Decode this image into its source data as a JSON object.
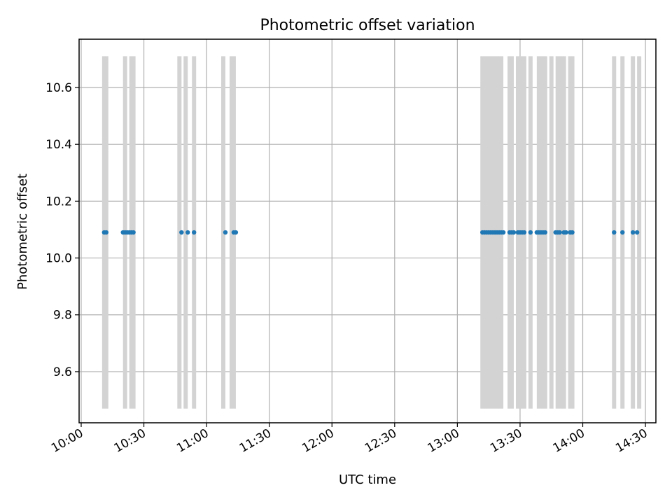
{
  "chart_data": {
    "type": "scatter",
    "title": "Photometric offset variation",
    "xlabel": "UTC time",
    "ylabel": "Photometric offset",
    "x_axis": {
      "kind": "time",
      "range": [
        "09:59",
        "14:35"
      ],
      "ticks": [
        "10:00",
        "10:30",
        "11:00",
        "11:30",
        "12:00",
        "12:30",
        "13:00",
        "13:30",
        "14:00",
        "14:30"
      ]
    },
    "y_axis": {
      "range": [
        9.42,
        10.77
      ],
      "ticks": [
        "9.6",
        "9.8",
        "10.0",
        "10.2",
        "10.4",
        "10.6"
      ]
    },
    "grid": true,
    "series": [
      {
        "color": "#1f77b4",
        "marker": "circle",
        "y_value": 10.09,
        "times": [
          "10:11",
          "10:12",
          "10:20",
          "10:21",
          "10:22",
          "10:23",
          "10:24",
          "10:25",
          "10:48",
          "10:51",
          "10:54",
          "11:09",
          "11:13",
          "11:14",
          "13:12",
          "13:13",
          "13:14",
          "13:15",
          "13:16",
          "13:17",
          "13:18",
          "13:19",
          "13:20",
          "13:21",
          "13:22",
          "13:25",
          "13:26",
          "13:27",
          "13:29",
          "13:30",
          "13:31",
          "13:32",
          "13:35",
          "13:38",
          "13:39",
          "13:40",
          "13:41",
          "13:42",
          "13:47",
          "13:48",
          "13:49",
          "13:51",
          "13:52",
          "13:54",
          "13:55",
          "14:15",
          "14:19",
          "14:24",
          "14:26"
        ]
      }
    ],
    "shaded_intervals": {
      "color": "#d3d3d3",
      "y_range": [
        9.47,
        10.71
      ],
      "intervals": [
        [
          "10:10",
          "10:13"
        ],
        [
          "10:20",
          "10:22"
        ],
        [
          "10:23",
          "10:26"
        ],
        [
          "10:46",
          "10:48"
        ],
        [
          "10:49",
          "10:51"
        ],
        [
          "10:53",
          "10:55"
        ],
        [
          "11:07",
          "11:09"
        ],
        [
          "11:11",
          "11:14"
        ],
        [
          "13:11",
          "13:22"
        ],
        [
          "13:24",
          "13:27"
        ],
        [
          "13:28",
          "13:33"
        ],
        [
          "13:34",
          "13:36"
        ],
        [
          "13:38",
          "13:43"
        ],
        [
          "13:44",
          "13:46"
        ],
        [
          "13:47",
          "13:52"
        ],
        [
          "13:53",
          "13:56"
        ],
        [
          "14:14",
          "14:16"
        ],
        [
          "14:18",
          "14:20"
        ],
        [
          "14:23",
          "14:25"
        ],
        [
          "14:26",
          "14:28"
        ]
      ]
    }
  }
}
